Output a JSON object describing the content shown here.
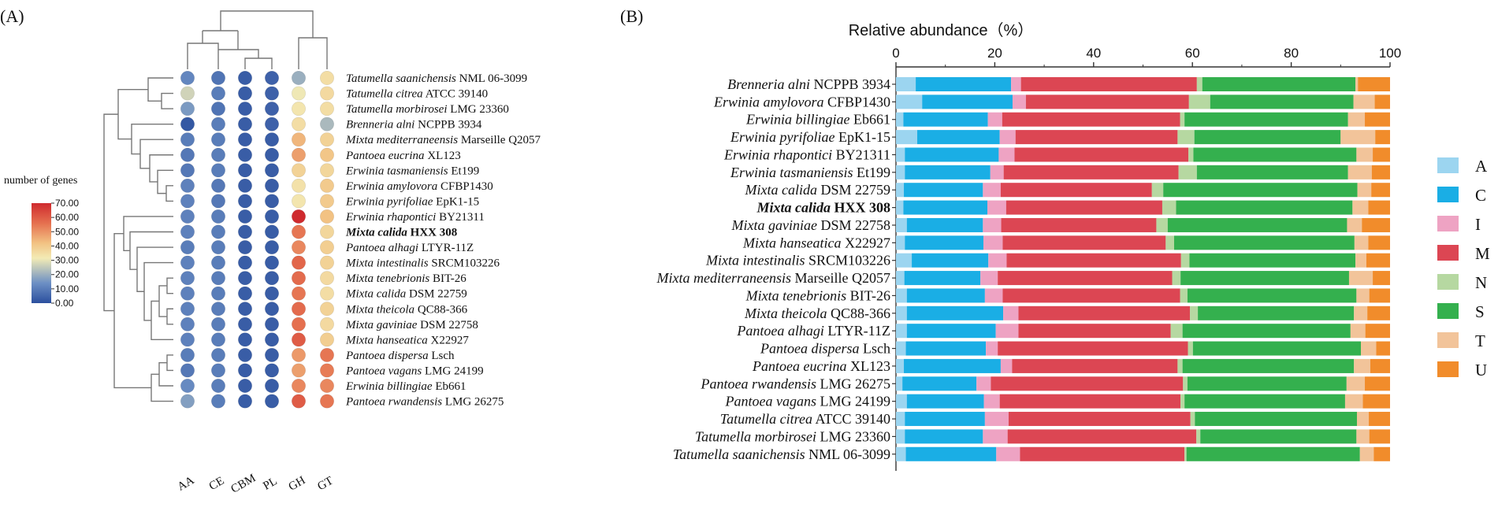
{
  "panel_a_label": "(A)",
  "panel_b_label": "(B)",
  "colors": {
    "A": "#9cd5f0",
    "C": "#1aaee5",
    "I": "#eea3c3",
    "M": "#dc4653",
    "N": "#b6d8a1",
    "S": "#34b04e",
    "T": "#f2c49a",
    "U": "#f18c2b",
    "highlight": "#d2232a"
  },
  "highlight_species": "Mixta calida HXX 308",
  "chart_data": [
    {
      "type": "heatmap",
      "panel": "(A)",
      "columns": [
        "AA",
        "CE",
        "CBM",
        "PL",
        "GH",
        "GT"
      ],
      "colorbar": {
        "title": "number of genes",
        "min": 0,
        "max": 70,
        "ticks": [
          "70.00",
          "60.00",
          "50.00",
          "40.00",
          "30.00",
          "20.00",
          "10.00",
          "0.00"
        ],
        "tick_values": [
          70,
          60,
          50,
          40,
          30,
          20,
          10,
          0
        ]
      },
      "rows": [
        {
          "genus": "Tatumella",
          "rest": "saanichensis",
          "strain": "NML 06-3099",
          "values": [
            12,
            8,
            3,
            4,
            20,
            35
          ]
        },
        {
          "genus": "Tatumella",
          "rest": "citrea",
          "strain": "ATCC 39140",
          "values": [
            27,
            10,
            3,
            4,
            31,
            36
          ]
        },
        {
          "genus": "Tatumella",
          "rest": "morbirosei",
          "strain": "LMG 23360",
          "values": [
            16,
            8,
            3,
            4,
            33,
            35
          ]
        },
        {
          "genus": "Brenneria",
          "rest": "alni",
          "strain": "NCPPB 3934",
          "values": [
            2,
            10,
            3,
            4,
            35,
            22
          ]
        },
        {
          "genus": "Mixta",
          "rest": "mediterraneensis",
          "strain": "Marseille Q2057",
          "values": [
            10,
            10,
            3,
            3,
            44,
            38
          ]
        },
        {
          "genus": "Pantoea",
          "rest": "eucrina",
          "strain": "XL123",
          "values": [
            9,
            10,
            3,
            3,
            48,
            41
          ]
        },
        {
          "genus": "Erwinia",
          "rest": "tasmaniensis",
          "strain": "Et199",
          "values": [
            9,
            10,
            3,
            3,
            38,
            37
          ]
        },
        {
          "genus": "Erwinia",
          "rest": "amylovora",
          "strain": "CFBP1430",
          "values": [
            11,
            9,
            3,
            3,
            34,
            40
          ]
        },
        {
          "genus": "Erwinia",
          "rest": "pyrifoliae",
          "strain": "EpK1-15",
          "values": [
            11,
            9,
            3,
            3,
            33,
            40
          ]
        },
        {
          "genus": "Erwinia",
          "rest": "rhapontici",
          "strain": "BY21311",
          "values": [
            11,
            10,
            3,
            3,
            70,
            42
          ]
        },
        {
          "genus": "Mixta",
          "rest": "calida",
          "strain": "HXX 308",
          "values": [
            11,
            10,
            3,
            3,
            55,
            37
          ]
        },
        {
          "genus": "Pantoea",
          "rest": "alhagi",
          "strain": "LTYR-11Z",
          "values": [
            10,
            10,
            3,
            3,
            52,
            39
          ]
        },
        {
          "genus": "Mixta",
          "rest": "intestinalis",
          "strain": "SRCM103226",
          "values": [
            11,
            10,
            3,
            3,
            58,
            38
          ]
        },
        {
          "genus": "Mixta",
          "rest": "tenebrionis",
          "strain": "BIT-26",
          "values": [
            11,
            10,
            3,
            3,
            57,
            36
          ]
        },
        {
          "genus": "Mixta",
          "rest": "calida",
          "strain": "DSM 22759",
          "values": [
            11,
            10,
            3,
            3,
            55,
            35
          ]
        },
        {
          "genus": "Mixta",
          "rest": "theicola",
          "strain": "QC88-366",
          "values": [
            11,
            10,
            3,
            3,
            57,
            38
          ]
        },
        {
          "genus": "Mixta",
          "rest": "gaviniae",
          "strain": "DSM 22758",
          "values": [
            11,
            10,
            3,
            3,
            56,
            36
          ]
        },
        {
          "genus": "Mixta",
          "rest": "hanseatica",
          "strain": "X22927",
          "values": [
            11,
            10,
            3,
            3,
            60,
            39
          ]
        },
        {
          "genus": "Pantoea",
          "rest": "dispersa",
          "strain": "Lsch",
          "values": [
            10,
            10,
            3,
            3,
            49,
            55
          ]
        },
        {
          "genus": "Pantoea",
          "rest": "vagans",
          "strain": "LMG 24199",
          "values": [
            9,
            10,
            3,
            3,
            48,
            54
          ]
        },
        {
          "genus": "Erwinia",
          "rest": "billingiae",
          "strain": "Eb661",
          "values": [
            13,
            10,
            3,
            3,
            52,
            52
          ]
        },
        {
          "genus": "Pantoea",
          "rest": "rwandensis",
          "strain": "LMG 26275",
          "values": [
            17,
            10,
            3,
            3,
            60,
            55
          ]
        }
      ]
    },
    {
      "type": "bar",
      "orientation": "horizontal",
      "stacked": true,
      "panel": "(B)",
      "title": "Relative abundance（%）",
      "xlim": [
        0,
        100
      ],
      "xticks": [
        0,
        20,
        40,
        60,
        80,
        100
      ],
      "legend": [
        "A",
        "C",
        "I",
        "M",
        "N",
        "S",
        "T",
        "U"
      ],
      "legend_position": "right",
      "categories": [
        {
          "genus": "Brenneria",
          "rest": "alni",
          "strain": "NCPPB 3934"
        },
        {
          "genus": "Erwinia",
          "rest": "amylovora",
          "strain": "CFBP1430"
        },
        {
          "genus": "Erwinia",
          "rest": "billingiae",
          "strain": "Eb661"
        },
        {
          "genus": "Erwinia",
          "rest": "pyrifoliae",
          "strain": "EpK1-15"
        },
        {
          "genus": "Erwinia",
          "rest": "rhapontici",
          "strain": "BY21311"
        },
        {
          "genus": "Erwinia",
          "rest": "tasmaniensis",
          "strain": "Et199"
        },
        {
          "genus": "Mixta",
          "rest": "calida",
          "strain": "DSM 22759"
        },
        {
          "genus": "Mixta",
          "rest": "calida",
          "strain": "HXX 308"
        },
        {
          "genus": "Mixta",
          "rest": "gaviniae",
          "strain": "DSM 22758"
        },
        {
          "genus": "Mixta",
          "rest": "hanseatica",
          "strain": "X22927"
        },
        {
          "genus": "Mixta",
          "rest": "intestinalis",
          "strain": "SRCM103226"
        },
        {
          "genus": "Mixta",
          "rest": "mediterraneensis",
          "strain": "Marseille Q2057"
        },
        {
          "genus": "Mixta",
          "rest": "tenebrionis",
          "strain": "BIT-26"
        },
        {
          "genus": "Mixta",
          "rest": "theicola",
          "strain": "QC88-366"
        },
        {
          "genus": "Pantoea",
          "rest": "alhagi",
          "strain": "LTYR-11Z"
        },
        {
          "genus": "Pantoea",
          "rest": "dispersa",
          "strain": "Lsch"
        },
        {
          "genus": "Pantoea",
          "rest": "eucrina",
          "strain": "XL123"
        },
        {
          "genus": "Pantoea",
          "rest": "rwandensis",
          "strain": "LMG 26275"
        },
        {
          "genus": "Pantoea",
          "rest": "vagans",
          "strain": "LMG 24199"
        },
        {
          "genus": "Tatumella",
          "rest": "citrea",
          "strain": "ATCC 39140"
        },
        {
          "genus": "Tatumella",
          "rest": "morbirosei",
          "strain": "LMG 23360"
        },
        {
          "genus": "Tatumella",
          "rest": "saanichensis",
          "strain": "NML 06-3099"
        }
      ],
      "series": [
        {
          "name": "A",
          "values": [
            4.0,
            5.3,
            1.5,
            4.3,
            1.8,
            1.8,
            1.6,
            1.5,
            2.2,
            1.8,
            3.2,
            1.7,
            2.2,
            2.2,
            2.2,
            2.0,
            1.6,
            1.3,
            2.2,
            1.8,
            1.8,
            2.0
          ]
        },
        {
          "name": "C",
          "values": [
            19.3,
            18.3,
            17.1,
            16.7,
            19.0,
            17.3,
            16.0,
            17.0,
            15.4,
            15.9,
            15.5,
            15.4,
            15.8,
            19.5,
            18.0,
            16.2,
            19.6,
            15.0,
            15.6,
            16.2,
            15.8,
            18.3
          ]
        },
        {
          "name": "I",
          "values": [
            2.0,
            2.7,
            2.9,
            3.2,
            3.2,
            2.7,
            3.6,
            3.8,
            3.7,
            3.9,
            3.7,
            3.5,
            3.6,
            3.1,
            4.6,
            2.4,
            2.3,
            2.9,
            3.2,
            4.8,
            5.0,
            4.8
          ]
        },
        {
          "name": "M",
          "values": [
            35.6,
            33.0,
            36.0,
            32.8,
            35.2,
            35.4,
            30.6,
            31.6,
            31.4,
            33.0,
            35.3,
            35.3,
            35.9,
            34.7,
            30.8,
            38.5,
            33.5,
            38.9,
            36.6,
            36.8,
            38.2,
            33.3
          ]
        },
        {
          "name": "N",
          "values": [
            1.1,
            4.3,
            0.9,
            3.4,
            1.0,
            3.7,
            2.3,
            2.8,
            2.3,
            1.7,
            1.7,
            1.7,
            1.5,
            1.6,
            2.4,
            1.0,
            1.0,
            0.9,
            0.8,
            0.9,
            0.8,
            0.4
          ]
        },
        {
          "name": "S",
          "values": [
            31.0,
            29.0,
            33.1,
            29.6,
            33.0,
            30.6,
            39.3,
            35.7,
            36.3,
            36.5,
            33.6,
            34.1,
            34.2,
            31.6,
            34.0,
            34.0,
            34.7,
            32.2,
            32.5,
            32.8,
            31.6,
            35.1
          ]
        },
        {
          "name": "T",
          "values": [
            0.5,
            4.3,
            3.4,
            7.0,
            3.3,
            4.8,
            2.8,
            3.2,
            3.0,
            2.8,
            2.2,
            4.8,
            2.6,
            2.7,
            3.0,
            3.1,
            3.3,
            3.7,
            3.6,
            2.4,
            2.6,
            2.8
          ]
        },
        {
          "name": "U",
          "values": [
            6.5,
            3.1,
            5.1,
            3.0,
            3.5,
            3.7,
            3.8,
            4.4,
            5.7,
            4.4,
            4.8,
            3.5,
            4.2,
            4.6,
            5.0,
            2.8,
            4.0,
            5.1,
            5.5,
            4.3,
            4.2,
            3.3
          ]
        }
      ]
    }
  ]
}
